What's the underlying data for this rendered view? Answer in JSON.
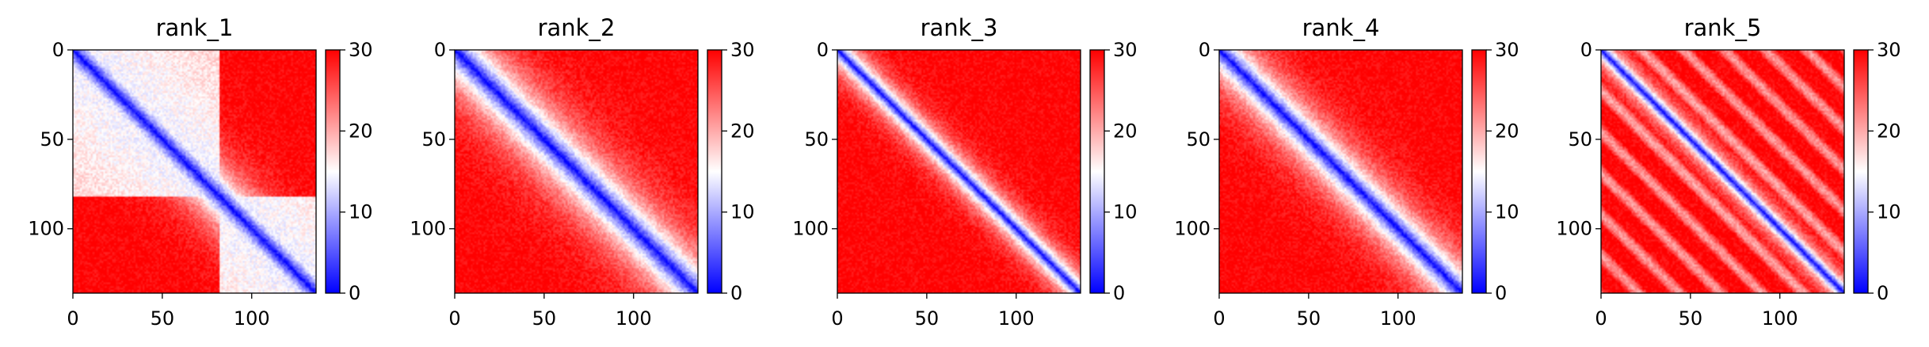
{
  "chart_data": [
    {
      "type": "heatmap",
      "title": "rank_1",
      "size": 136,
      "xlim": [
        0,
        136
      ],
      "ylim": [
        136,
        0
      ],
      "x_ticks": [
        0,
        50,
        100
      ],
      "y_ticks": [
        0,
        50,
        100
      ],
      "colorbar": {
        "min": 0,
        "max": 30,
        "ticks": [
          0,
          10,
          20,
          30
        ],
        "colors": [
          "#0000ff",
          "#ffffff",
          "#ff0000"
        ]
      },
      "pattern": {
        "kind": "domains",
        "boundary": 82,
        "width": 14,
        "domain_level": 14
      }
    },
    {
      "type": "heatmap",
      "title": "rank_2",
      "size": 136,
      "xlim": [
        0,
        136
      ],
      "ylim": [
        136,
        0
      ],
      "x_ticks": [
        0,
        50,
        100
      ],
      "y_ticks": [
        0,
        50,
        100
      ],
      "colorbar": {
        "min": 0,
        "max": 30,
        "ticks": [
          0,
          10,
          20,
          30
        ],
        "colors": [
          "#0000ff",
          "#ffffff",
          "#ff0000"
        ]
      },
      "pattern": {
        "kind": "diagonal",
        "width": 16,
        "domain_level": 24
      }
    },
    {
      "type": "heatmap",
      "title": "rank_3",
      "size": 136,
      "xlim": [
        0,
        136
      ],
      "ylim": [
        136,
        0
      ],
      "x_ticks": [
        0,
        50,
        100
      ],
      "y_ticks": [
        0,
        50,
        100
      ],
      "colorbar": {
        "min": 0,
        "max": 30,
        "ticks": [
          0,
          10,
          20,
          30
        ],
        "colors": [
          "#0000ff",
          "#ffffff",
          "#ff0000"
        ]
      },
      "pattern": {
        "kind": "diagonal",
        "width": 8,
        "domain_level": 26
      }
    },
    {
      "type": "heatmap",
      "title": "rank_4",
      "size": 136,
      "xlim": [
        0,
        136
      ],
      "ylim": [
        136,
        0
      ],
      "x_ticks": [
        0,
        50,
        100
      ],
      "y_ticks": [
        0,
        50,
        100
      ],
      "colorbar": {
        "min": 0,
        "max": 30,
        "ticks": [
          0,
          10,
          20,
          30
        ],
        "colors": [
          "#0000ff",
          "#ffffff",
          "#ff0000"
        ]
      },
      "pattern": {
        "kind": "diagonal",
        "width": 13,
        "domain_level": 24
      }
    },
    {
      "type": "heatmap",
      "title": "rank_5",
      "size": 136,
      "xlim": [
        0,
        136
      ],
      "ylim": [
        136,
        0
      ],
      "x_ticks": [
        0,
        50,
        100
      ],
      "y_ticks": [
        0,
        50,
        100
      ],
      "colorbar": {
        "min": 0,
        "max": 30,
        "ticks": [
          0,
          10,
          20,
          30
        ],
        "colors": [
          "#0000ff",
          "#ffffff",
          "#ff0000"
        ]
      },
      "pattern": {
        "kind": "periodic",
        "width": 6,
        "period": 23,
        "domain_level": 24
      }
    }
  ]
}
